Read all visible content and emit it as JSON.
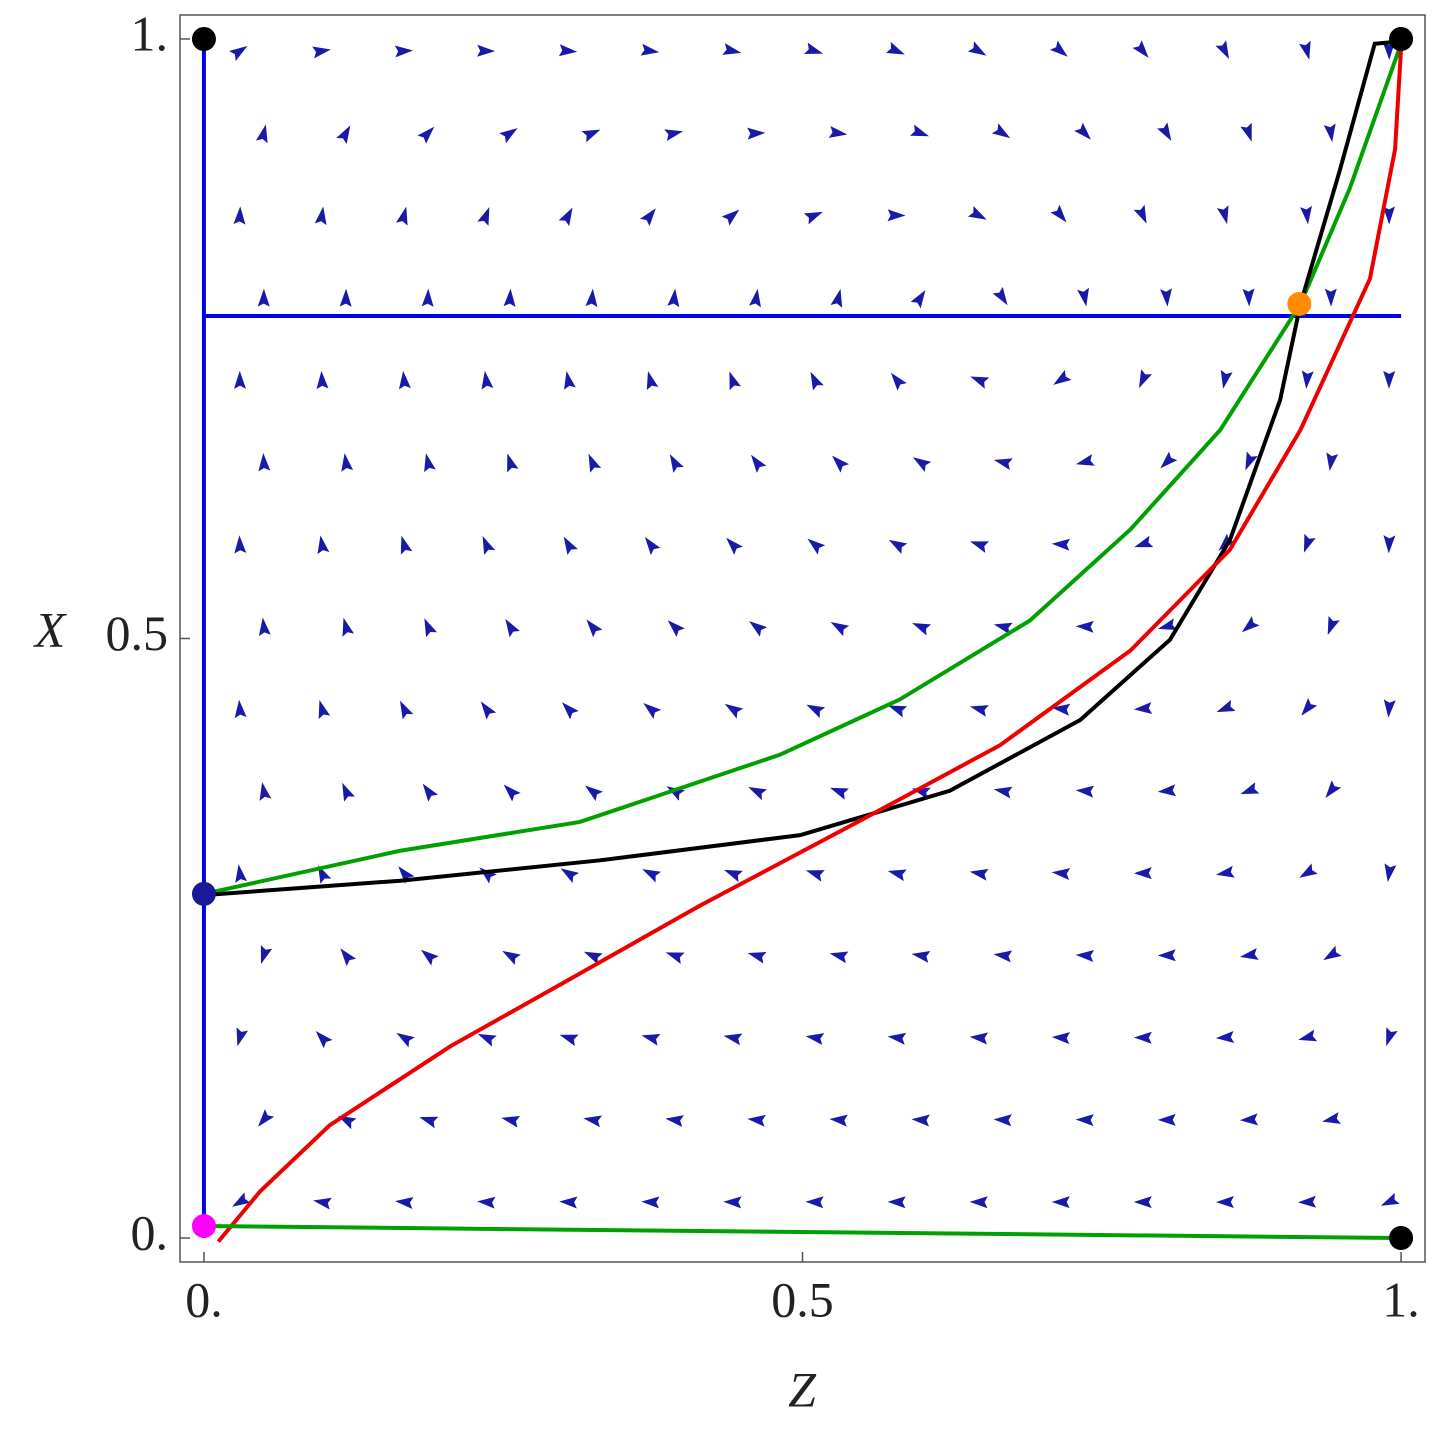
{
  "chart_data": {
    "type": "phase-portrait",
    "xlabel": "Z",
    "ylabel": "X",
    "xlim": [
      -0.02,
      1.02
    ],
    "ylim": [
      -0.02,
      1.02
    ],
    "xticks": [
      {
        "value": 0,
        "label": "0."
      },
      0.5,
      {
        "value": 1,
        "label": "1."
      }
    ],
    "yticks": [
      {
        "value": 0,
        "label": "0."
      },
      0.5,
      {
        "value": 1,
        "label": "1."
      }
    ],
    "series": [
      {
        "color": "#0000ee",
        "x": [
          0,
          0
        ],
        "values": [
          0,
          1
        ]
      },
      {
        "color": "#0000ee",
        "x": [
          0,
          1
        ],
        "values": [
          0.769,
          0.769
        ]
      },
      {
        "color": "#00a000",
        "x": [
          0,
          0.164,
          0.314,
          0.481,
          0.581,
          0.69,
          0.774,
          0.849,
          0.916,
          0.957,
          1
        ],
        "values": [
          0.287,
          0.323,
          0.347,
          0.403,
          0.449,
          0.515,
          0.591,
          0.674,
          0.779,
          0.875,
          0.996
        ]
      },
      {
        "color": "#000000",
        "x": [
          0,
          0.164,
          0.331,
          0.498,
          0.623,
          0.732,
          0.807,
          0.857,
          0.899,
          0.916,
          0.949,
          0.978,
          1
        ],
        "values": [
          0.286,
          0.298,
          0.315,
          0.336,
          0.373,
          0.432,
          0.499,
          0.582,
          0.699,
          0.779,
          0.891,
          0.996,
          0.998
        ]
      },
      {
        "color": "#ee0000",
        "x": [
          0.012,
          0.047,
          0.105,
          0.206,
          0.297,
          0.414,
          0.548,
          0.665,
          0.774,
          0.857,
          0.916,
          0.974,
          0.995,
          1
        ],
        "values": [
          -0.003,
          0.039,
          0.094,
          0.16,
          0.211,
          0.277,
          0.348,
          0.411,
          0.49,
          0.574,
          0.674,
          0.8,
          0.908,
          0.992
        ]
      },
      {
        "color": "#00a000",
        "x": [
          0,
          1
        ],
        "values": [
          0.01,
          0
        ]
      }
    ],
    "points": [
      {
        "x": 0,
        "value": 1,
        "color": "#000000"
      },
      {
        "x": 1,
        "value": 1,
        "color": "#000000"
      },
      {
        "x": 1,
        "value": 0,
        "color": "#000000"
      },
      {
        "x": 0,
        "value": 0.287,
        "color": "#1a1a99"
      },
      {
        "x": 0,
        "value": 0.01,
        "color": "#ff00ff"
      },
      {
        "x": 0.915,
        "value": 0.779,
        "color": "#ff8c00"
      }
    ]
  }
}
